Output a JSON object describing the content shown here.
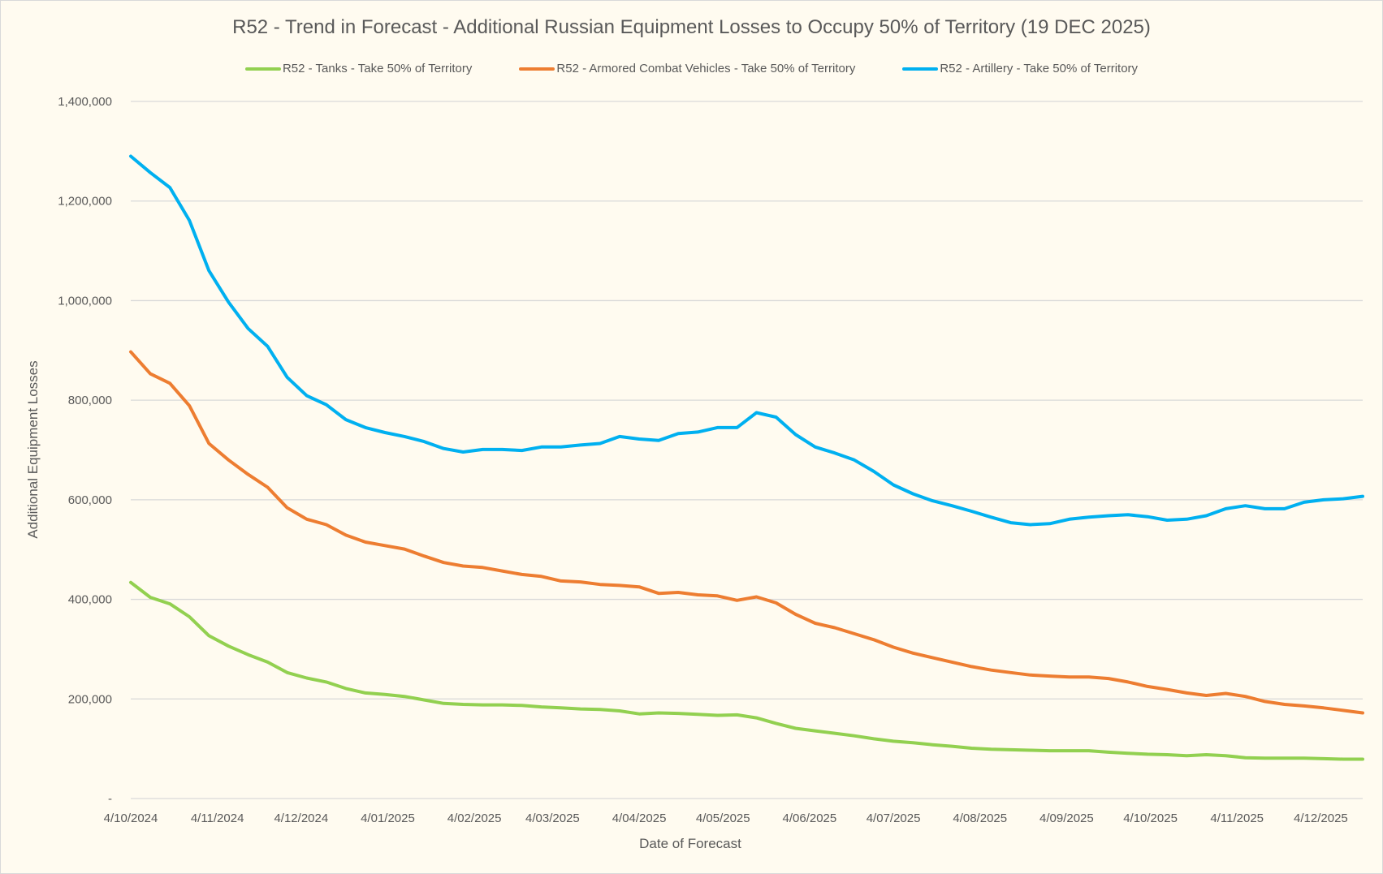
{
  "chart_data": {
    "type": "line",
    "title": "R52 - Trend in Forecast - Additional Russian Equipment Losses to Occupy 50% of Territory (19 DEC 2025)",
    "xlabel": "Date of Forecast",
    "ylabel": "Additional Equipment Losses",
    "ylim": [
      0,
      1400000
    ],
    "y_ticks": [
      "-",
      "200,000",
      "400,000",
      "600,000",
      "800,000",
      "1,000,000",
      "1,200,000",
      "1,400,000"
    ],
    "y_tick_values": [
      0,
      200000,
      400000,
      600000,
      800000,
      1000000,
      1200000,
      1400000
    ],
    "x_ticks": [
      "4/10/2024",
      "4/11/2024",
      "4/12/2024",
      "4/01/2025",
      "4/02/2025",
      "4/03/2025",
      "4/04/2025",
      "4/05/2025",
      "4/06/2025",
      "4/07/2025",
      "4/08/2025",
      "4/09/2025",
      "4/10/2025",
      "4/11/2025",
      "4/12/2025"
    ],
    "x_tick_dates": [
      "2024-10-04",
      "2024-11-04",
      "2024-12-04",
      "2025-01-04",
      "2025-02-04",
      "2025-03-04",
      "2025-04-04",
      "2025-05-04",
      "2025-06-04",
      "2025-07-04",
      "2025-08-04",
      "2025-09-04",
      "2025-10-04",
      "2025-11-04",
      "2025-12-04"
    ],
    "xlim": [
      "2024-10-04",
      "2025-12-19"
    ],
    "grid": "horizontal",
    "legend": "top",
    "x": [
      "2024-10-04",
      "2024-10-11",
      "2024-10-18",
      "2024-10-25",
      "2024-11-01",
      "2024-11-08",
      "2024-11-15",
      "2024-11-22",
      "2024-11-29",
      "2024-12-06",
      "2024-12-13",
      "2024-12-20",
      "2024-12-27",
      "2025-01-03",
      "2025-01-10",
      "2025-01-17",
      "2025-01-24",
      "2025-01-31",
      "2025-02-07",
      "2025-02-14",
      "2025-02-21",
      "2025-02-28",
      "2025-03-07",
      "2025-03-14",
      "2025-03-21",
      "2025-03-28",
      "2025-04-04",
      "2025-04-11",
      "2025-04-18",
      "2025-04-25",
      "2025-05-02",
      "2025-05-09",
      "2025-05-16",
      "2025-05-23",
      "2025-05-30",
      "2025-06-06",
      "2025-06-13",
      "2025-06-20",
      "2025-06-27",
      "2025-07-04",
      "2025-07-11",
      "2025-07-18",
      "2025-07-25",
      "2025-08-01",
      "2025-08-08",
      "2025-08-15",
      "2025-08-22",
      "2025-08-29",
      "2025-09-05",
      "2025-09-12",
      "2025-09-19",
      "2025-09-26",
      "2025-10-03",
      "2025-10-10",
      "2025-10-17",
      "2025-10-24",
      "2025-10-31",
      "2025-11-07",
      "2025-11-14",
      "2025-11-21",
      "2025-11-28",
      "2025-12-05",
      "2025-12-12",
      "2025-12-19"
    ],
    "series": [
      {
        "name": "R52 - Tanks - Take 50% of Territory",
        "color": "#92d050",
        "values": [
          434000,
          404000,
          391000,
          365000,
          327000,
          306000,
          289000,
          274000,
          253000,
          242000,
          234000,
          221000,
          212000,
          209000,
          205000,
          198000,
          191000,
          189000,
          188000,
          188000,
          187000,
          184000,
          182000,
          180000,
          179000,
          176000,
          170000,
          172000,
          171000,
          169000,
          167000,
          168000,
          162000,
          151000,
          141000,
          136000,
          131000,
          126000,
          120000,
          115000,
          112000,
          108000,
          105000,
          101000,
          99000,
          98000,
          97000,
          96000,
          96000,
          96000,
          93000,
          91000,
          89000,
          88000,
          86000,
          88000,
          86000,
          82000,
          81000,
          81000,
          81000,
          80000,
          79000,
          79000
        ]
      },
      {
        "name": "R52 - Armored Combat Vehicles - Take 50% of Territory",
        "color": "#ed7d31",
        "values": [
          897000,
          853000,
          834000,
          789000,
          713000,
          680000,
          651000,
          625000,
          584000,
          561000,
          550000,
          529000,
          515000,
          508000,
          501000,
          487000,
          474000,
          467000,
          464000,
          457000,
          450000,
          446000,
          437000,
          435000,
          430000,
          428000,
          425000,
          412000,
          414000,
          409000,
          407000,
          398000,
          405000,
          393000,
          370000,
          352000,
          343000,
          331000,
          319000,
          304000,
          292000,
          283000,
          274000,
          265000,
          258000,
          253000,
          248000,
          246000,
          244000,
          244000,
          241000,
          234000,
          225000,
          219000,
          212000,
          207000,
          211000,
          205000,
          195000,
          189000,
          186000,
          182000,
          177000,
          172000
        ]
      },
      {
        "name": "R52 - Artillery - Take 50% of Territory",
        "color": "#00b0f0",
        "values": [
          1290000,
          1257000,
          1227000,
          1161000,
          1060000,
          997000,
          944000,
          908000,
          846000,
          809000,
          791000,
          761000,
          745000,
          735000,
          727000,
          717000,
          703000,
          696000,
          701000,
          701000,
          699000,
          706000,
          706000,
          710000,
          713000,
          727000,
          722000,
          719000,
          733000,
          736000,
          745000,
          745000,
          775000,
          766000,
          731000,
          706000,
          694000,
          680000,
          657000,
          630000,
          612000,
          598000,
          588000,
          577000,
          565000,
          554000,
          550000,
          552000,
          561000,
          565000,
          568000,
          570000,
          566000,
          559000,
          561000,
          568000,
          582000,
          588000,
          582000,
          582000,
          595000,
          600000,
          602000,
          607000
        ]
      }
    ]
  }
}
